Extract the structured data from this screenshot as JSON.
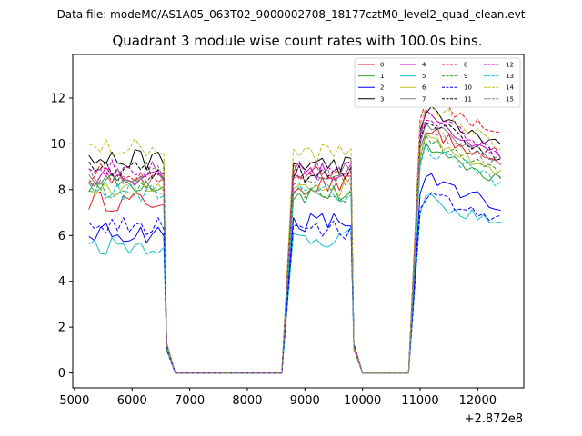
{
  "chart_data": {
    "type": "line",
    "suptitle": "Data file: modeM0/AS1A05_063T02_9000002708_18177cztM0_level2_quad_clean.evt",
    "title": "Quadrant 3 module wise count rates with 100.0s bins.",
    "xlabel": "",
    "ylabel": "",
    "x_offset_label": "+2.872e8",
    "xlim": [
      4970,
      12800
    ],
    "ylim": [
      -0.65,
      13.9
    ],
    "xticks": [
      5000,
      6000,
      7000,
      8000,
      9000,
      10000,
      11000,
      12000
    ],
    "yticks": [
      0,
      2,
      4,
      6,
      8,
      10,
      12
    ],
    "legend": {
      "position": "top-right",
      "columns": 4
    },
    "segments": [
      {
        "start": 5250,
        "end": 6550,
        "drop_end": 6750
      },
      {
        "start": 8800,
        "end": 9800,
        "drop_end": 10000
      },
      {
        "start": 11000,
        "end": 12450,
        "drop_end": 12450
      }
    ],
    "series": [
      {
        "name": "0",
        "color": "#e41a1c",
        "dash": false,
        "levels": [
          7.5,
          8.2,
          10.0
        ]
      },
      {
        "name": "1",
        "color": "#2ca02c",
        "dash": false,
        "levels": [
          8.3,
          7.8,
          9.3
        ]
      },
      {
        "name": "2",
        "color": "#0000ff",
        "dash": false,
        "levels": [
          6.1,
          6.6,
          8.0
        ]
      },
      {
        "name": "3",
        "color": "#000000",
        "dash": false,
        "levels": [
          9.3,
          9.1,
          10.8
        ]
      },
      {
        "name": "4",
        "color": "#cc00cc",
        "dash": false,
        "levels": [
          8.6,
          8.8,
          10.5
        ]
      },
      {
        "name": "5",
        "color": "#17becf",
        "dash": false,
        "levels": [
          5.6,
          5.9,
          7.1
        ]
      },
      {
        "name": "6",
        "color": "#bcbd22",
        "dash": false,
        "levels": [
          8.1,
          8.1,
          9.6
        ]
      },
      {
        "name": "7",
        "color": "#7f7f7f",
        "dash": false,
        "levels": [
          8.5,
          8.7,
          10.2
        ]
      },
      {
        "name": "8",
        "color": "#e41a1c",
        "dash": true,
        "levels": [
          8.7,
          8.9,
          11.3
        ]
      },
      {
        "name": "9",
        "color": "#2ca02c",
        "dash": true,
        "levels": [
          8.0,
          7.9,
          9.5
        ]
      },
      {
        "name": "10",
        "color": "#0000ff",
        "dash": true,
        "levels": [
          6.4,
          6.2,
          7.3
        ]
      },
      {
        "name": "11",
        "color": "#000000",
        "dash": true,
        "levels": [
          8.8,
          8.6,
          10.4
        ]
      },
      {
        "name": "12",
        "color": "#cc00cc",
        "dash": true,
        "levels": [
          8.9,
          9.0,
          10.6
        ]
      },
      {
        "name": "13",
        "color": "#17becf",
        "dash": true,
        "levels": [
          7.9,
          7.8,
          9.2
        ]
      },
      {
        "name": "14",
        "color": "#bcbd22",
        "dash": true,
        "levels": [
          9.8,
          9.6,
          11.0
        ]
      },
      {
        "name": "15",
        "color": "#7f7f7f",
        "dash": true,
        "levels": [
          8.6,
          8.5,
          10.0
        ]
      }
    ]
  }
}
